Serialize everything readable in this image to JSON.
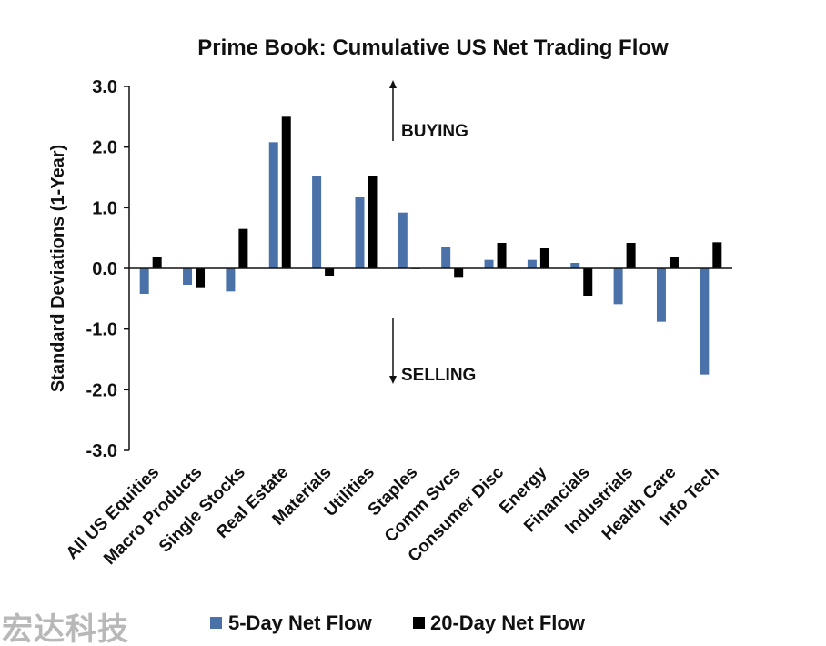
{
  "chart_data": {
    "type": "bar",
    "title": "Prime Book: Cumulative US Net Trading Flow",
    "ylabel": "Standard Deviations (1-Year)",
    "xlabel": "",
    "ylim": [
      -3.0,
      3.0
    ],
    "yticks": [
      "3.0",
      "2.0",
      "1.0",
      "0.0",
      "-1.0",
      "-2.0",
      "-3.0"
    ],
    "ytick_values": [
      3,
      2,
      1,
      0,
      -1,
      -2,
      -3
    ],
    "grid": false,
    "legend_position": "bottom",
    "categories": [
      "All US Equities",
      "Macro Products",
      "Single Stocks",
      "Real Estate",
      "Materials",
      "Utilities",
      "Staples",
      "Comm Svcs",
      "Consumer Disc",
      "Energy",
      "Financials",
      "Industrials",
      "Health Care",
      "Info Tech"
    ],
    "series": [
      {
        "name": "5-Day Net Flow",
        "color": "#4a72a8",
        "values": [
          -0.42,
          -0.27,
          -0.38,
          2.08,
          1.53,
          1.17,
          0.92,
          0.36,
          0.14,
          0.14,
          0.09,
          -0.59,
          -0.88,
          -1.75
        ]
      },
      {
        "name": "20-Day Net Flow",
        "color": "#000000",
        "values": [
          0.18,
          -0.31,
          0.65,
          2.5,
          -0.12,
          1.53,
          -0.01,
          -0.14,
          0.42,
          0.33,
          -0.45,
          0.42,
          0.19,
          0.43
        ]
      }
    ],
    "annotations": [
      {
        "text": "BUYING",
        "direction": "up"
      },
      {
        "text": "SELLING",
        "direction": "down"
      }
    ]
  },
  "watermark": "宏达科技"
}
